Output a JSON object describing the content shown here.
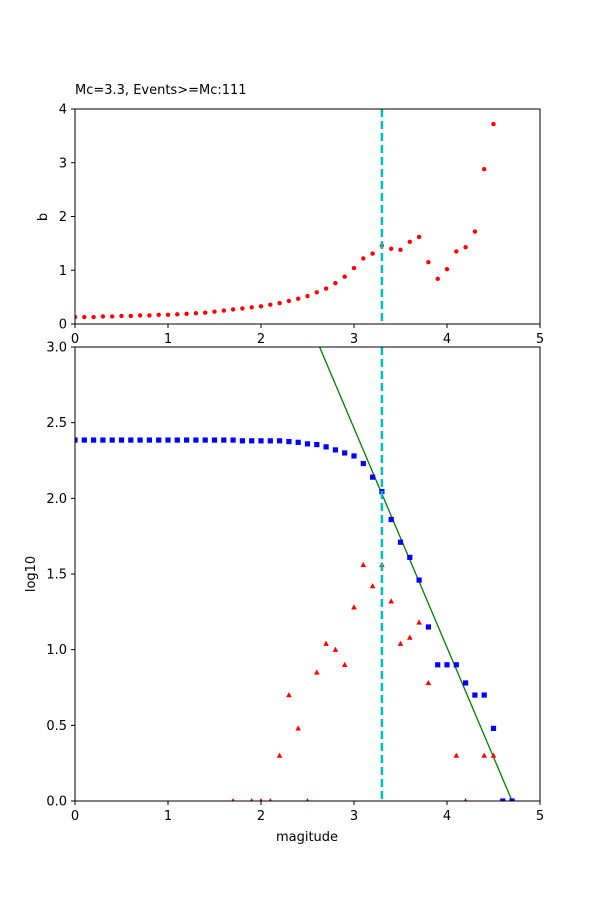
{
  "chart_data": [
    {
      "type": "scatter",
      "title": "Mc=3.3, Events>=Mc:111",
      "xlabel": "",
      "ylabel": "b",
      "xlim": [
        0,
        5
      ],
      "ylim": [
        0,
        4
      ],
      "xticks": [
        "0",
        "1",
        "2",
        "3",
        "4",
        "5"
      ],
      "yticks": [
        "0",
        "1",
        "2",
        "3",
        "4"
      ],
      "mc_line": 3.3,
      "series": [
        {
          "marker": "circle",
          "color": "#ff0000",
          "x": [
            0.0,
            0.1,
            0.2,
            0.3,
            0.4,
            0.5,
            0.6,
            0.7,
            0.8,
            0.9,
            1.0,
            1.1,
            1.2,
            1.3,
            1.4,
            1.5,
            1.6,
            1.7,
            1.8,
            1.9,
            2.0,
            2.1,
            2.2,
            2.3,
            2.4,
            2.5,
            2.6,
            2.7,
            2.8,
            2.9,
            3.0,
            3.1,
            3.2,
            3.3,
            3.4,
            3.5,
            3.6,
            3.7,
            3.8,
            3.9,
            4.0,
            4.1,
            4.2,
            4.3,
            4.4,
            4.5
          ],
          "y": [
            0.13,
            0.13,
            0.13,
            0.14,
            0.14,
            0.15,
            0.15,
            0.16,
            0.16,
            0.17,
            0.17,
            0.18,
            0.19,
            0.2,
            0.21,
            0.23,
            0.25,
            0.27,
            0.29,
            0.31,
            0.33,
            0.36,
            0.39,
            0.43,
            0.47,
            0.52,
            0.59,
            0.66,
            0.76,
            0.88,
            1.04,
            1.22,
            1.31,
            1.46,
            1.4,
            1.38,
            1.53,
            1.62,
            1.15,
            0.84,
            1.02,
            1.35,
            1.43,
            1.72,
            2.88,
            3.72
          ]
        }
      ]
    },
    {
      "type": "scatter",
      "title": "",
      "xlabel": "magitude",
      "ylabel": "log10",
      "xlim": [
        0,
        5
      ],
      "ylim": [
        0,
        3
      ],
      "xticks": [
        "0",
        "1",
        "2",
        "3",
        "4",
        "5"
      ],
      "yticks": [
        "0.0",
        "0.5",
        "1.0",
        "1.5",
        "2.0",
        "2.5",
        "3.0"
      ],
      "mc_line": 3.3,
      "fit_line": {
        "color": "#008000",
        "x": [
          2.63,
          4.7
        ],
        "y": [
          3.0,
          0.0
        ]
      },
      "series": [
        {
          "marker": "square",
          "color": "#0000ff",
          "x": [
            0.0,
            0.1,
            0.2,
            0.3,
            0.4,
            0.5,
            0.6,
            0.7,
            0.8,
            0.9,
            1.0,
            1.1,
            1.2,
            1.3,
            1.4,
            1.5,
            1.6,
            1.7,
            1.8,
            1.9,
            2.0,
            2.1,
            2.2,
            2.3,
            2.4,
            2.5,
            2.6,
            2.7,
            2.8,
            2.9,
            3.0,
            3.1,
            3.2,
            3.3,
            3.4,
            3.5,
            3.6,
            3.7,
            3.8,
            3.9,
            4.0,
            4.1,
            4.2,
            4.3,
            4.4,
            4.5,
            4.6,
            4.7
          ],
          "y": [
            2.385,
            2.385,
            2.385,
            2.385,
            2.385,
            2.385,
            2.385,
            2.385,
            2.385,
            2.385,
            2.385,
            2.385,
            2.385,
            2.385,
            2.385,
            2.385,
            2.385,
            2.385,
            2.38,
            2.38,
            2.38,
            2.38,
            2.38,
            2.375,
            2.37,
            2.36,
            2.355,
            2.34,
            2.32,
            2.3,
            2.28,
            2.23,
            2.14,
            2.045,
            1.86,
            1.71,
            1.61,
            1.46,
            1.15,
            0.9,
            0.9,
            0.9,
            0.78,
            0.7,
            0.7,
            0.48,
            0.0,
            0.0
          ]
        },
        {
          "marker": "triangle",
          "color": "#ff0000",
          "x": [
            1.7,
            1.9,
            2.0,
            2.1,
            2.2,
            2.3,
            2.4,
            2.5,
            2.6,
            2.7,
            2.8,
            2.9,
            3.0,
            3.1,
            3.2,
            3.3,
            3.4,
            3.5,
            3.6,
            3.7,
            3.8,
            4.1,
            4.2,
            4.4,
            4.5
          ],
          "y": [
            0.0,
            0.0,
            0.0,
            0.0,
            0.3,
            0.7,
            0.48,
            0.0,
            0.85,
            1.04,
            1.0,
            0.9,
            1.28,
            1.56,
            1.42,
            1.56,
            1.32,
            1.04,
            1.08,
            1.18,
            0.78,
            0.3,
            0.0,
            0.3,
            0.3
          ]
        }
      ]
    }
  ]
}
